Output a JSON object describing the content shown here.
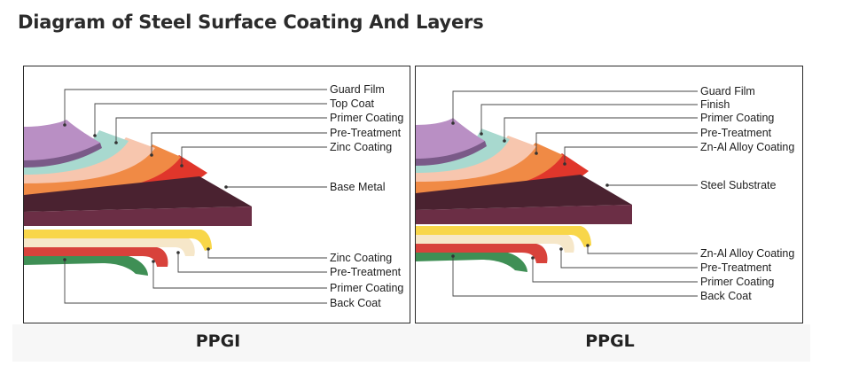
{
  "title": "Diagram of Steel Surface Coating And Layers",
  "colors": {
    "guard_film": "#b98fc4",
    "top_coat": "#a8d9cf",
    "primer": "#f7c6ae",
    "pretreat": "#f08a45",
    "zinc": "#e0362b",
    "base_metal": "#3a1a22",
    "yellow": "#f8d64a",
    "cream": "#f6e7c9",
    "red": "#d8423b",
    "green": "#3f8f55"
  },
  "panels": [
    {
      "name": "PPGI",
      "caption": "PPGI",
      "top_labels": [
        "Guard Film",
        "Top Coat",
        "Primer Coating",
        "Pre-Treatment",
        "Zinc Coating"
      ],
      "base_label": "Base Metal",
      "bottom_labels": [
        "Zinc Coating",
        "Pre-Treatment",
        "Primer Coating",
        "Back Coat"
      ]
    },
    {
      "name": "PPGL",
      "caption": "PPGL",
      "top_labels": [
        "Guard Film",
        "Finish",
        "Primer Coating",
        "Pre-Treatment",
        "Zn-Al Alloy Coating"
      ],
      "base_label": "Steel Substrate",
      "bottom_labels": [
        "Zn-Al Alloy Coating",
        "Pre-Treatment",
        "Primer Coating",
        "Back Coat"
      ]
    }
  ]
}
